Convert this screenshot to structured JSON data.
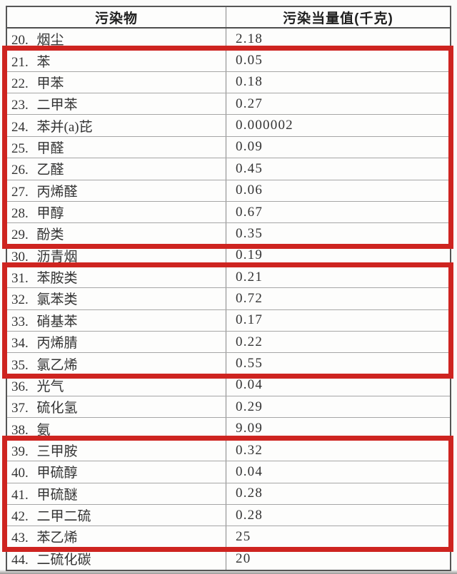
{
  "table": {
    "header": {
      "col1": "污染物",
      "col2": "污染当量值(千克)"
    },
    "rows": [
      {
        "label": "20. 烟尘",
        "value": "2.18"
      },
      {
        "label": "21. 苯",
        "value": "0.05"
      },
      {
        "label": "22. 甲苯",
        "value": "0.18"
      },
      {
        "label": "23. 二甲苯",
        "value": "0.27"
      },
      {
        "label": "24. 苯并(a)芘",
        "value": "0.000002"
      },
      {
        "label": "25. 甲醛",
        "value": "0.09"
      },
      {
        "label": "26. 乙醛",
        "value": "0.45"
      },
      {
        "label": "27. 丙烯醛",
        "value": "0.06"
      },
      {
        "label": "28. 甲醇",
        "value": "0.67"
      },
      {
        "label": "29. 酚类",
        "value": "0.35"
      },
      {
        "label": "30. 沥青烟",
        "value": "0.19"
      },
      {
        "label": "31. 苯胺类",
        "value": "0.21"
      },
      {
        "label": "32. 氯苯类",
        "value": "0.72"
      },
      {
        "label": "33. 硝基苯",
        "value": "0.17"
      },
      {
        "label": "34. 丙烯腈",
        "value": "0.22"
      },
      {
        "label": "35. 氯乙烯",
        "value": "0.55"
      },
      {
        "label": "36. 光气",
        "value": "0.04"
      },
      {
        "label": "37. 硫化氢",
        "value": "0.29"
      },
      {
        "label": "38. 氨",
        "value": "9.09"
      },
      {
        "label": "39. 三甲胺",
        "value": "0.32"
      },
      {
        "label": "40. 甲硫醇",
        "value": "0.04"
      },
      {
        "label": "41. 甲硫醚",
        "value": "0.28"
      },
      {
        "label": "42. 二甲二硫",
        "value": "0.28"
      },
      {
        "label": "43. 苯乙烯",
        "value": "25"
      },
      {
        "label": "44. 二硫化碳",
        "value": "20"
      }
    ],
    "highlight_groups": [
      {
        "from": 1,
        "to": 9
      },
      {
        "from": 11,
        "to": 15
      },
      {
        "from": 19,
        "to": 23
      }
    ],
    "colors": {
      "highlight_border": "#ce2420",
      "grid_line": "#a6a6a6",
      "outer_border": "#565656",
      "text": "#333333"
    }
  }
}
